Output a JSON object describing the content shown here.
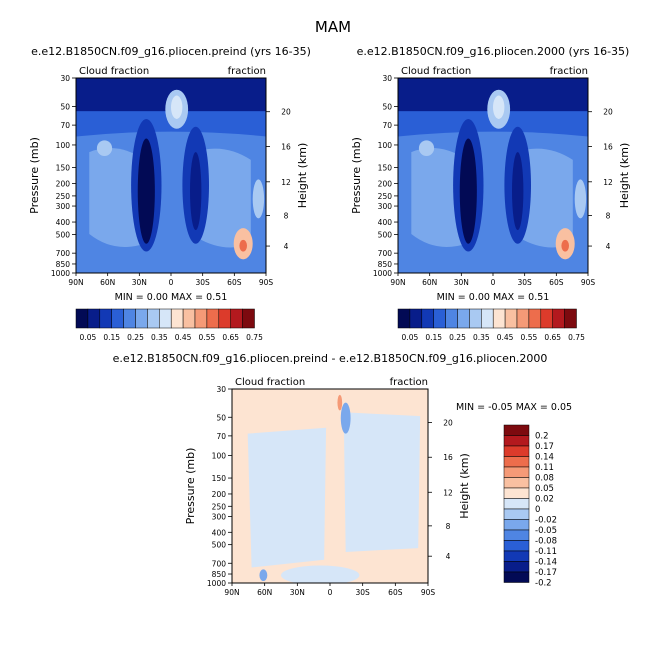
{
  "figure_title": "MAM",
  "colors": {
    "warm": [
      "#fde4d2",
      "#f9c0a1",
      "#f59a77",
      "#ed6d4c",
      "#dc3b2b",
      "#b3191e",
      "#7d0a0f"
    ],
    "cool": [
      "#d6e6f8",
      "#a9c9f2",
      "#7aa8ec",
      "#4f85e3",
      "#2a5fd6",
      "#1239b5",
      "#081d8a",
      "#020a55"
    ]
  },
  "chart_data": [
    {
      "type": "heatmap",
      "title": "e.e12.B1850CN.f09_g16.pliocen.preind (yrs 16-35)",
      "field_left": "Cloud fraction",
      "field_right": "fraction",
      "xlabel": "",
      "ylabel": "Pressure (mb)",
      "ylabel_right": "Height (km)",
      "x_ticks": [
        "90N",
        "60N",
        "30N",
        "0",
        "30S",
        "60S",
        "90S"
      ],
      "y_ticks": [
        30,
        50,
        70,
        100,
        150,
        200,
        250,
        300,
        400,
        500,
        700,
        850,
        1000
      ],
      "right_ticks": [
        20,
        16,
        12,
        8,
        4
      ],
      "stats": "MIN =   0.00   MAX =   0.51",
      "colorbar_labels": [
        "0.05",
        "0.15",
        "0.25",
        "0.35",
        "0.45",
        "0.55",
        "0.65",
        "0.75"
      ]
    },
    {
      "type": "heatmap",
      "title": "e.e12.B1850CN.f09_g16.pliocen.2000 (yrs 16-35)",
      "field_left": "Cloud fraction",
      "field_right": "fraction",
      "xlabel": "",
      "ylabel": "Pressure (mb)",
      "ylabel_right": "Height (km)",
      "x_ticks": [
        "90N",
        "60N",
        "30N",
        "0",
        "30S",
        "60S",
        "90S"
      ],
      "y_ticks": [
        30,
        50,
        70,
        100,
        150,
        200,
        250,
        300,
        400,
        500,
        700,
        850,
        1000
      ],
      "right_ticks": [
        20,
        16,
        12,
        8,
        4
      ],
      "stats": "MIN =   0.00   MAX =   0.51",
      "colorbar_labels": [
        "0.05",
        "0.15",
        "0.25",
        "0.35",
        "0.45",
        "0.55",
        "0.65",
        "0.75"
      ]
    },
    {
      "type": "heatmap",
      "title": "e.e12.B1850CN.f09_g16.pliocen.preind - e.e12.B1850CN.f09_g16.pliocen.2000",
      "field_left": "Cloud fraction",
      "field_right": "fraction",
      "xlabel": "",
      "ylabel": "Pressure (mb)",
      "ylabel_right": "Height (km)",
      "x_ticks": [
        "90N",
        "60N",
        "30N",
        "0",
        "30S",
        "60S",
        "90S"
      ],
      "y_ticks": [
        30,
        50,
        70,
        100,
        150,
        200,
        250,
        300,
        400,
        500,
        700,
        850,
        1000
      ],
      "right_ticks": [
        20,
        16,
        12,
        8,
        4
      ],
      "stats": "MIN =  -0.05   MAX =   0.05",
      "colorbar_labels": [
        "0.2",
        "0.17",
        "0.14",
        "0.11",
        "0.08",
        "0.05",
        "0.02",
        "0",
        "-0.02",
        "-0.05",
        "-0.08",
        "-0.11",
        "-0.14",
        "-0.17",
        "-0.2"
      ]
    }
  ]
}
